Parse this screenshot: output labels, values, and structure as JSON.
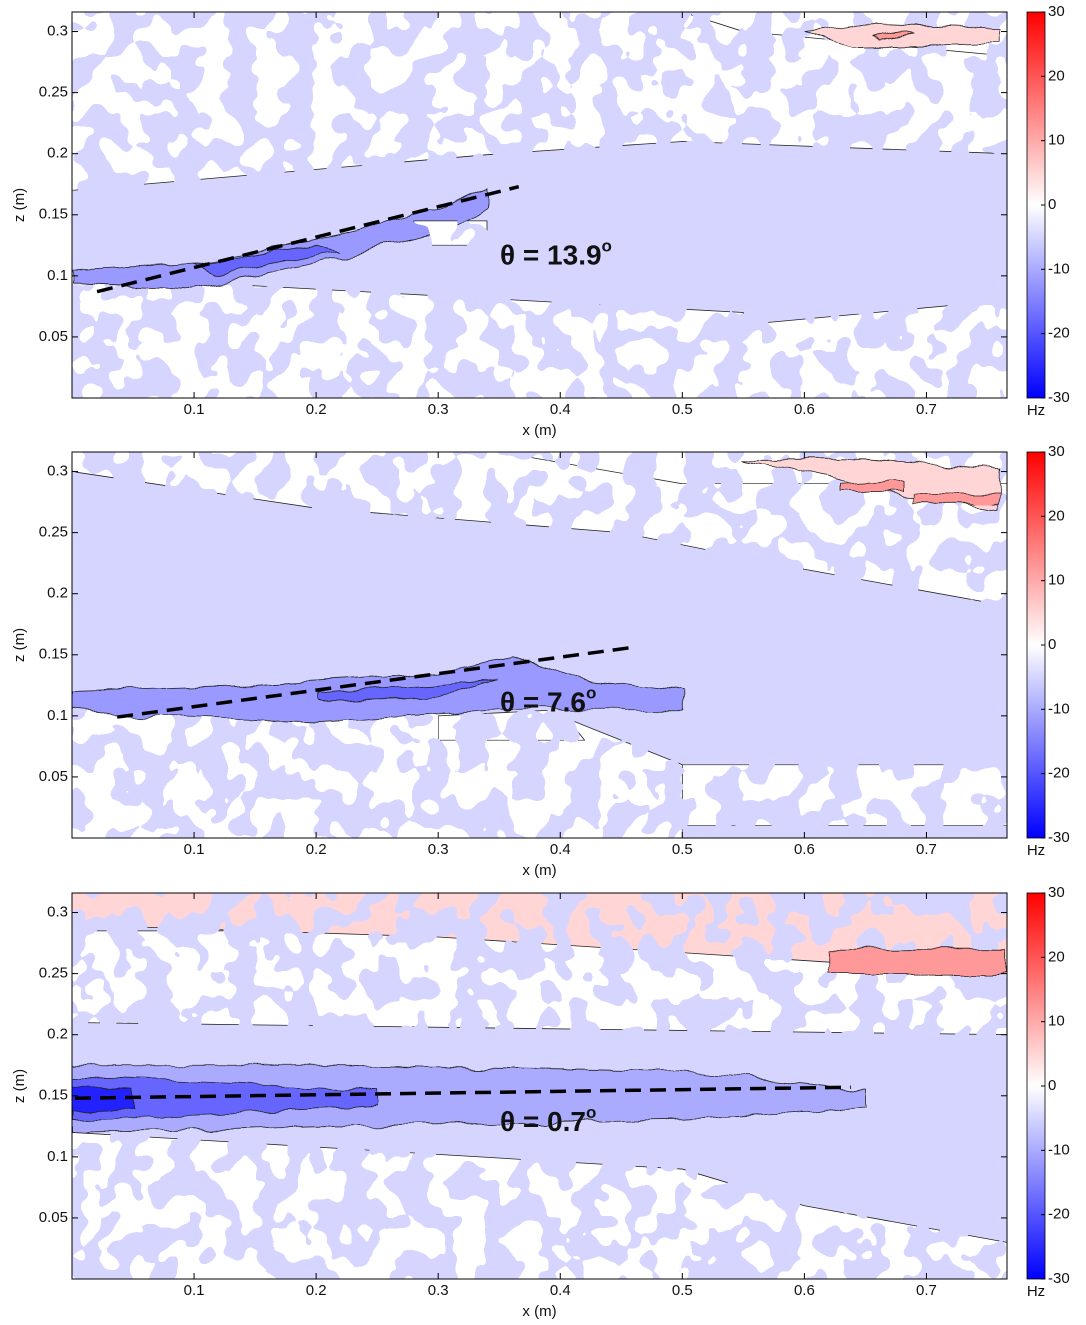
{
  "chart_data": [
    {
      "type": "contour",
      "xlabel": "x (m)",
      "ylabel": "z (m)",
      "xlim": [
        0,
        0.766
      ],
      "ylim": [
        0,
        0.316
      ],
      "xticks": [
        0.1,
        0.2,
        0.3,
        0.4,
        0.5,
        0.6,
        0.7
      ],
      "yticks": [
        0.05,
        0.1,
        0.15,
        0.2,
        0.25,
        0.3
      ],
      "colorbar": {
        "label": "Hz",
        "lim": [
          -30,
          30
        ],
        "ticks": [
          -30,
          -20,
          -10,
          0,
          10,
          20,
          30
        ]
      },
      "base_level": -5,
      "regions": [
        {
          "level": 0,
          "x": [
            0,
            0.766,
            0.766,
            0.5,
            0.35,
            0
          ],
          "z": [
            0.316,
            0.316,
            0.2,
            0.21,
            0.2,
            0.17
          ]
        },
        {
          "level": 0,
          "x": [
            0,
            0.55,
            0.55,
            0.766,
            0.766,
            0
          ],
          "z": [
            0.1,
            0.07,
            0.06,
            0.08,
            0,
            0
          ]
        },
        {
          "level": 0,
          "x": [
            0.5,
            0.766,
            0.766,
            0.55
          ],
          "z": [
            0.316,
            0.316,
            0.28,
            0.3
          ]
        },
        {
          "level": 5,
          "x": [
            0.6,
            0.64,
            0.76,
            0.76,
            0.64
          ],
          "z": [
            0.3,
            0.306,
            0.302,
            0.29,
            0.288
          ]
        },
        {
          "level": 12,
          "x": [
            0.655,
            0.68,
            0.69,
            0.66
          ],
          "z": [
            0.296,
            0.3,
            0.298,
            0.293
          ]
        },
        {
          "level": -12,
          "x": [
            0,
            0.1,
            0.2,
            0.3,
            0.34,
            0.34,
            0.3,
            0.2,
            0.1,
            0
          ],
          "z": [
            0.105,
            0.11,
            0.13,
            0.155,
            0.172,
            0.155,
            0.135,
            0.11,
            0.09,
            0.095
          ]
        },
        {
          "level": -18,
          "x": [
            0.1,
            0.2,
            0.22,
            0.12
          ],
          "z": [
            0.11,
            0.125,
            0.12,
            0.102
          ]
        },
        {
          "level": 0,
          "x": [
            0.28,
            0.34,
            0.34,
            0.28
          ],
          "z": [
            0.145,
            0.145,
            0.125,
            0.125
          ]
        }
      ],
      "fit_line": {
        "x": [
          0.0205,
          0.366
        ],
        "z": [
          0.087,
          0.173
        ]
      },
      "annotation": {
        "text": "θ = 13.9",
        "superscript": "o"
      }
    },
    {
      "type": "contour",
      "xlabel": "x (m)",
      "ylabel": "z (m)",
      "xlim": [
        0,
        0.766
      ],
      "ylim": [
        0,
        0.316
      ],
      "xticks": [
        0.1,
        0.2,
        0.3,
        0.4,
        0.5,
        0.6,
        0.7
      ],
      "yticks": [
        0.05,
        0.1,
        0.15,
        0.2,
        0.25,
        0.3
      ],
      "colorbar": {
        "label": "Hz",
        "lim": [
          -30,
          30
        ],
        "ticks": [
          -30,
          -20,
          -10,
          0,
          10,
          20,
          30
        ]
      },
      "base_level": -5,
      "regions": [
        {
          "level": 0,
          "x": [
            0,
            0.766,
            0.766,
            0.6,
            0.45,
            0.2,
            0
          ],
          "z": [
            0.316,
            0.316,
            0.19,
            0.22,
            0.25,
            0.27,
            0.3
          ]
        },
        {
          "level": 0,
          "x": [
            0.35,
            0.766,
            0.766,
            0.5
          ],
          "z": [
            0.316,
            0.316,
            0.29,
            0.29
          ]
        },
        {
          "level": 5,
          "x": [
            0.55,
            0.65,
            0.76,
            0.76,
            0.68,
            0.6
          ],
          "z": [
            0.31,
            0.31,
            0.302,
            0.27,
            0.28,
            0.3
          ]
        },
        {
          "level": 12,
          "x": [
            0.63,
            0.68,
            0.68,
            0.63
          ],
          "z": [
            0.29,
            0.293,
            0.284,
            0.284
          ]
        },
        {
          "level": 12,
          "x": [
            0.69,
            0.76,
            0.76,
            0.69
          ],
          "z": [
            0.282,
            0.282,
            0.274,
            0.274
          ]
        },
        {
          "level": 0,
          "x": [
            0,
            0.4,
            0.5,
            0.5,
            0
          ],
          "z": [
            0.11,
            0.1,
            0.06,
            0,
            0
          ]
        },
        {
          "level": 0,
          "x": [
            0.5,
            0.766,
            0.766,
            0.5
          ],
          "z": [
            0.06,
            0.06,
            0.01,
            0.01
          ]
        },
        {
          "level": -12,
          "x": [
            0,
            0.15,
            0.3,
            0.36,
            0.42,
            0.5,
            0.5,
            0.35,
            0.2,
            0.05,
            0
          ],
          "z": [
            0.12,
            0.125,
            0.135,
            0.148,
            0.13,
            0.12,
            0.105,
            0.105,
            0.095,
            0.1,
            0.105
          ]
        },
        {
          "level": -18,
          "x": [
            0.2,
            0.3,
            0.35,
            0.3,
            0.2
          ],
          "z": [
            0.118,
            0.125,
            0.13,
            0.115,
            0.112
          ]
        },
        {
          "level": 0,
          "x": [
            0.3,
            0.4,
            0.42,
            0.3
          ],
          "z": [
            0.1,
            0.105,
            0.08,
            0.08
          ]
        }
      ],
      "fit_line": {
        "x": [
          0.037,
          0.459
        ],
        "z": [
          0.099,
          0.156
        ]
      },
      "annotation": {
        "text": "θ = 7.6",
        "superscript": "o"
      }
    },
    {
      "type": "contour",
      "xlabel": "x (m)",
      "ylabel": "z (m)",
      "xlim": [
        0,
        0.766
      ],
      "ylim": [
        0,
        0.316
      ],
      "xticks": [
        0.1,
        0.2,
        0.3,
        0.4,
        0.5,
        0.6,
        0.7
      ],
      "yticks": [
        0.05,
        0.1,
        0.15,
        0.2,
        0.25,
        0.3
      ],
      "colorbar": {
        "label": "Hz",
        "lim": [
          -30,
          30
        ],
        "ticks": [
          -30,
          -20,
          -10,
          0,
          10,
          20,
          30
        ]
      },
      "base_level": -5,
      "regions": [
        {
          "level": 0,
          "x": [
            0,
            0.766,
            0.766,
            0
          ],
          "z": [
            0.285,
            0.285,
            0.2,
            0.21
          ]
        },
        {
          "level": 5,
          "x": [
            0,
            0.766,
            0.766,
            0.3,
            0
          ],
          "z": [
            0.316,
            0.316,
            0.25,
            0.28,
            0.29
          ]
        },
        {
          "level": 12,
          "x": [
            0.62,
            0.766,
            0.766,
            0.62
          ],
          "z": [
            0.27,
            0.27,
            0.25,
            0.25
          ]
        },
        {
          "level": -10,
          "x": [
            0,
            0.2,
            0.5,
            0.65,
            0.65,
            0.5,
            0.2,
            0
          ],
          "z": [
            0.175,
            0.175,
            0.17,
            0.155,
            0.14,
            0.13,
            0.125,
            0.12
          ]
        },
        {
          "level": -18,
          "x": [
            0,
            0.1,
            0.25,
            0.25,
            0.1,
            0
          ],
          "z": [
            0.165,
            0.162,
            0.155,
            0.142,
            0.135,
            0.13
          ]
        },
        {
          "level": -26,
          "x": [
            0,
            0.05,
            0.05,
            0
          ],
          "z": [
            0.158,
            0.155,
            0.14,
            0.138
          ]
        },
        {
          "level": 0,
          "x": [
            0,
            0.5,
            0.6,
            0.766,
            0.766,
            0
          ],
          "z": [
            0.12,
            0.09,
            0.06,
            0.03,
            0,
            0
          ]
        }
      ],
      "fit_line": {
        "x": [
          0.0025,
          0.638
        ],
        "z": [
          0.148,
          0.157
        ]
      },
      "annotation": {
        "text": "θ = 0.7",
        "superscript": "o"
      }
    }
  ]
}
